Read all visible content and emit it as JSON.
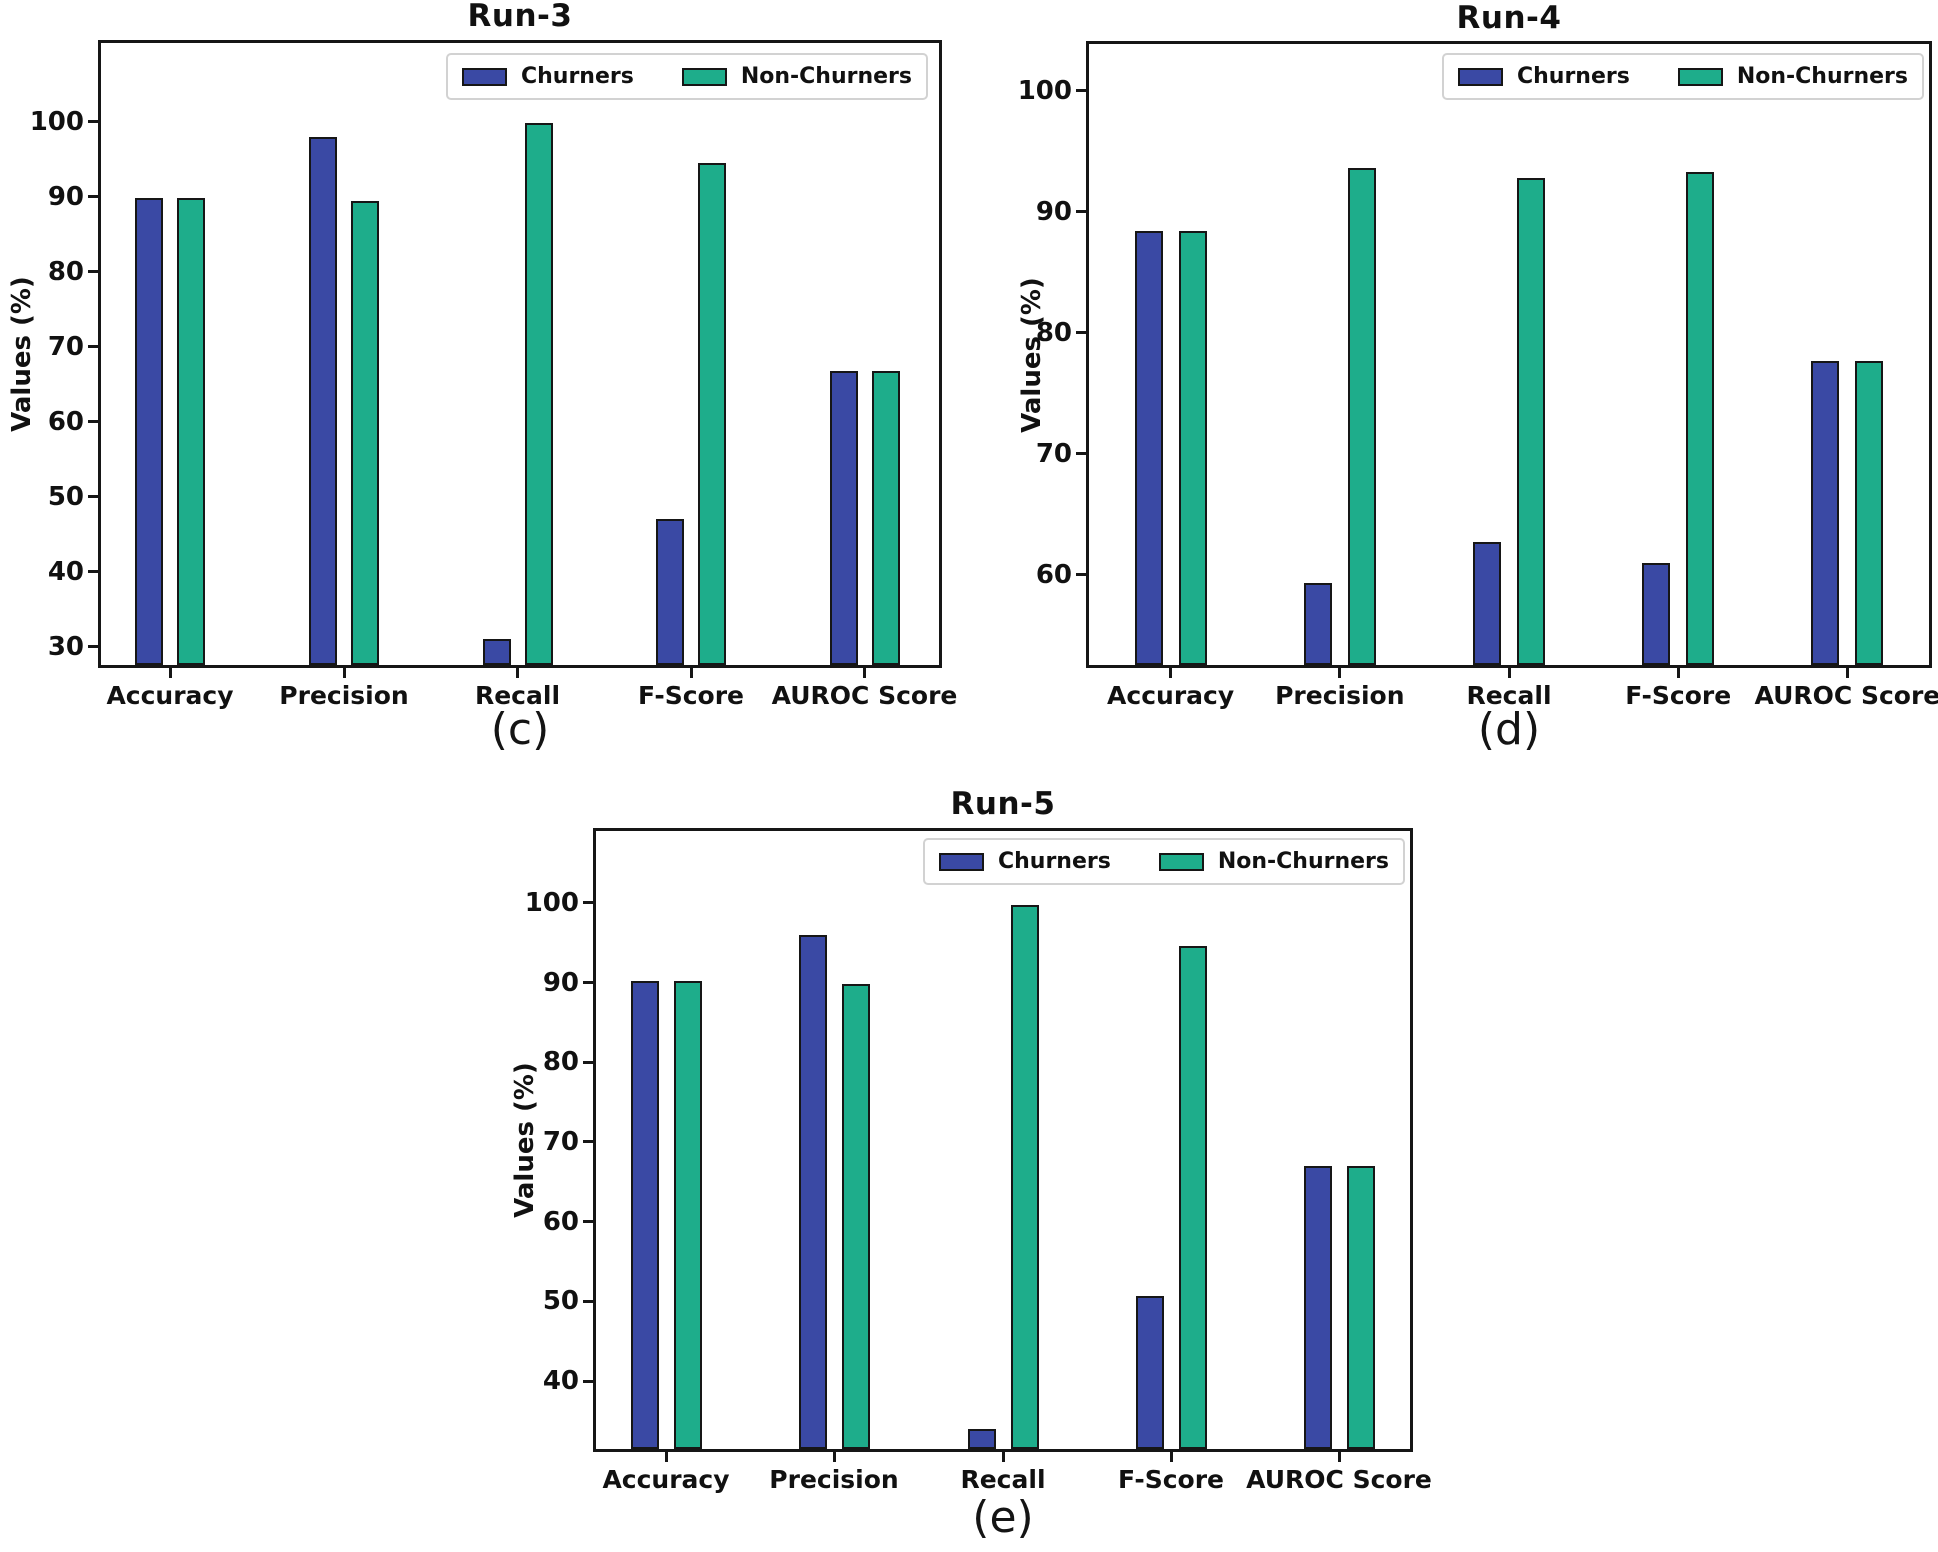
{
  "figure": {
    "background": "#ffffff",
    "series_labels": [
      "Churners",
      "Non-Churners"
    ]
  },
  "colors": {
    "churners": "#3A49A4",
    "non_churners": "#1EAD8B",
    "bar_border": "#161616",
    "axis": "#161616",
    "legend_border": "#d2d2d2",
    "text": "#111111"
  },
  "chart_data": [
    {
      "id": "run3",
      "type": "bar",
      "title": "Run-3",
      "ylabel": "Values (%)",
      "caption": "(c)",
      "categories": [
        "Accuracy",
        "Precision",
        "Recall",
        "F-Score",
        "AUROC Score"
      ],
      "series": [
        {
          "name": "Churners",
          "color": "#3A49A4",
          "values": [
            89.8,
            98.0,
            31.0,
            47.0,
            66.8
          ]
        },
        {
          "name": "Non-Churners",
          "color": "#1EAD8B",
          "values": [
            89.8,
            89.5,
            99.8,
            94.5,
            66.8
          ]
        }
      ],
      "yticks": [
        30,
        40,
        50,
        60,
        70,
        80,
        90,
        100
      ],
      "ylim": [
        27.2,
        110.9
      ],
      "grid": false,
      "legend_position": "top-right"
    },
    {
      "id": "run4",
      "type": "bar",
      "title": "Run-4",
      "ylabel": "Values (%)",
      "caption": "(d)",
      "categories": [
        "Accuracy",
        "Precision",
        "Recall",
        "F-Score",
        "AUROC Score"
      ],
      "series": [
        {
          "name": "Churners",
          "color": "#3A49A4",
          "values": [
            88.4,
            59.3,
            62.7,
            61.0,
            77.7
          ]
        },
        {
          "name": "Non-Churners",
          "color": "#1EAD8B",
          "values": [
            88.4,
            93.6,
            92.8,
            93.3,
            77.7
          ]
        }
      ],
      "yticks": [
        60,
        70,
        80,
        90,
        100
      ],
      "ylim": [
        52.3,
        104.1
      ],
      "grid": false,
      "legend_position": "top-right"
    },
    {
      "id": "run5",
      "type": "bar",
      "title": "Run-5",
      "ylabel": "Values (%)",
      "caption": "(e)",
      "categories": [
        "Accuracy",
        "Precision",
        "Recall",
        "F-Score",
        "AUROC Score"
      ],
      "series": [
        {
          "name": "Churners",
          "color": "#3A49A4",
          "values": [
            90.2,
            96.0,
            34.0,
            50.7,
            67.0
          ]
        },
        {
          "name": "Non-Churners",
          "color": "#1EAD8B",
          "values": [
            90.2,
            89.8,
            99.8,
            94.6,
            67.0
          ]
        }
      ],
      "yticks": [
        40,
        50,
        60,
        70,
        80,
        90,
        100
      ],
      "ylim": [
        31.1,
        109.4
      ],
      "grid": false,
      "legend_position": "top-right"
    }
  ]
}
